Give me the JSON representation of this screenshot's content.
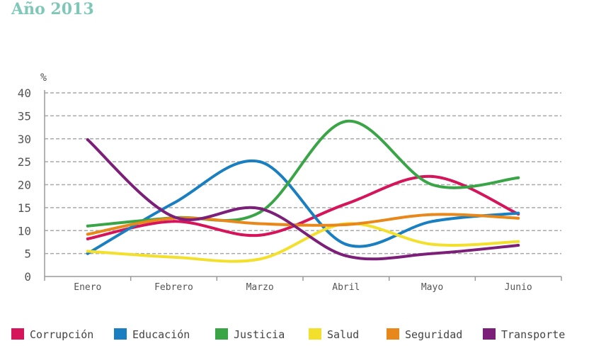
{
  "page_title": "Año 2013",
  "chart_data": {
    "type": "line",
    "title": "Año 2013",
    "ylabel": "%",
    "xlabel": "",
    "ylim": [
      0,
      40
    ],
    "yticks": [
      0,
      5,
      10,
      15,
      20,
      25,
      30,
      35,
      40
    ],
    "categories": [
      "Enero",
      "Febrero",
      "Marzo",
      "Abril",
      "Mayo",
      "Junio"
    ],
    "grid": true,
    "legend_position": "bottom",
    "series": [
      {
        "name": "Corrupción",
        "color": "#d5145a",
        "values": [
          8.2,
          12.0,
          9.0,
          15.8,
          21.8,
          13.6
        ]
      },
      {
        "name": "Educación",
        "color": "#1a7fc1",
        "values": [
          5.0,
          16.0,
          25.0,
          7.0,
          12.0,
          13.8
        ]
      },
      {
        "name": "Justicia",
        "color": "#3aa547",
        "values": [
          11.0,
          12.8,
          14.0,
          33.8,
          20.0,
          21.5
        ]
      },
      {
        "name": "Salud",
        "color": "#f2e02c",
        "values": [
          5.5,
          4.2,
          3.8,
          11.5,
          7.0,
          7.6
        ]
      },
      {
        "name": "Seguridad",
        "color": "#e8881a",
        "values": [
          9.2,
          12.7,
          11.5,
          11.3,
          13.5,
          12.7
        ]
      },
      {
        "name": "Transporte",
        "color": "#7b1f78",
        "values": [
          29.8,
          13.0,
          14.8,
          4.5,
          5.0,
          6.8
        ]
      }
    ]
  }
}
